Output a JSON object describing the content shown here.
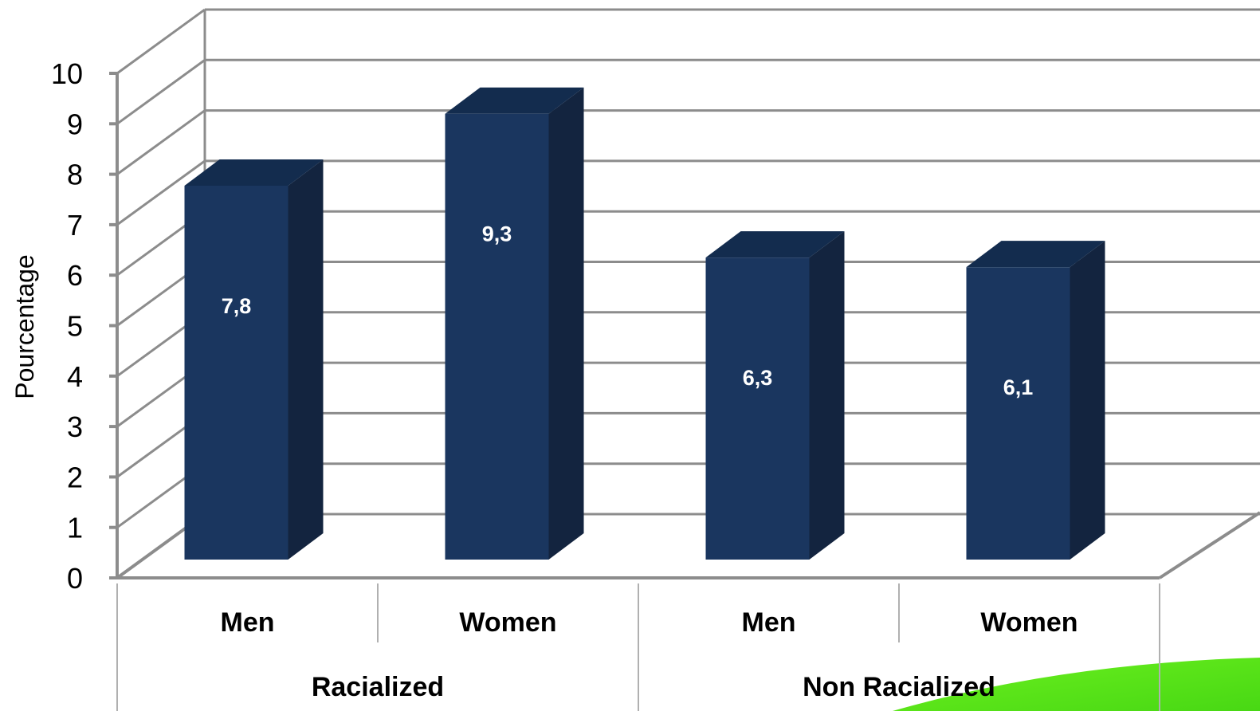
{
  "chart_data": {
    "type": "bar",
    "style": "3d-column",
    "title": "",
    "ylabel": "Pourcentage",
    "xlabel": "",
    "ylim": [
      0,
      10
    ],
    "yticks": [
      0,
      1,
      2,
      3,
      4,
      5,
      6,
      7,
      8,
      9,
      10
    ],
    "grid": true,
    "categories": [
      "Men",
      "Women",
      "Men",
      "Women"
    ],
    "groups": [
      {
        "label": "Racialized",
        "categories": [
          "Men",
          "Women"
        ]
      },
      {
        "label": "Non Racialized",
        "categories": [
          "Men",
          "Women"
        ]
      }
    ],
    "values": [
      7.8,
      9.3,
      6.3,
      6.1
    ],
    "data_labels": [
      "7,8",
      "9,3",
      "6,3",
      "6,1"
    ],
    "colors": {
      "bar_front": "#1a365f",
      "bar_side": "#13243f",
      "bar_top": "#132c4e",
      "grid": "#8c8c8c",
      "decoration": "#55e61a"
    }
  }
}
